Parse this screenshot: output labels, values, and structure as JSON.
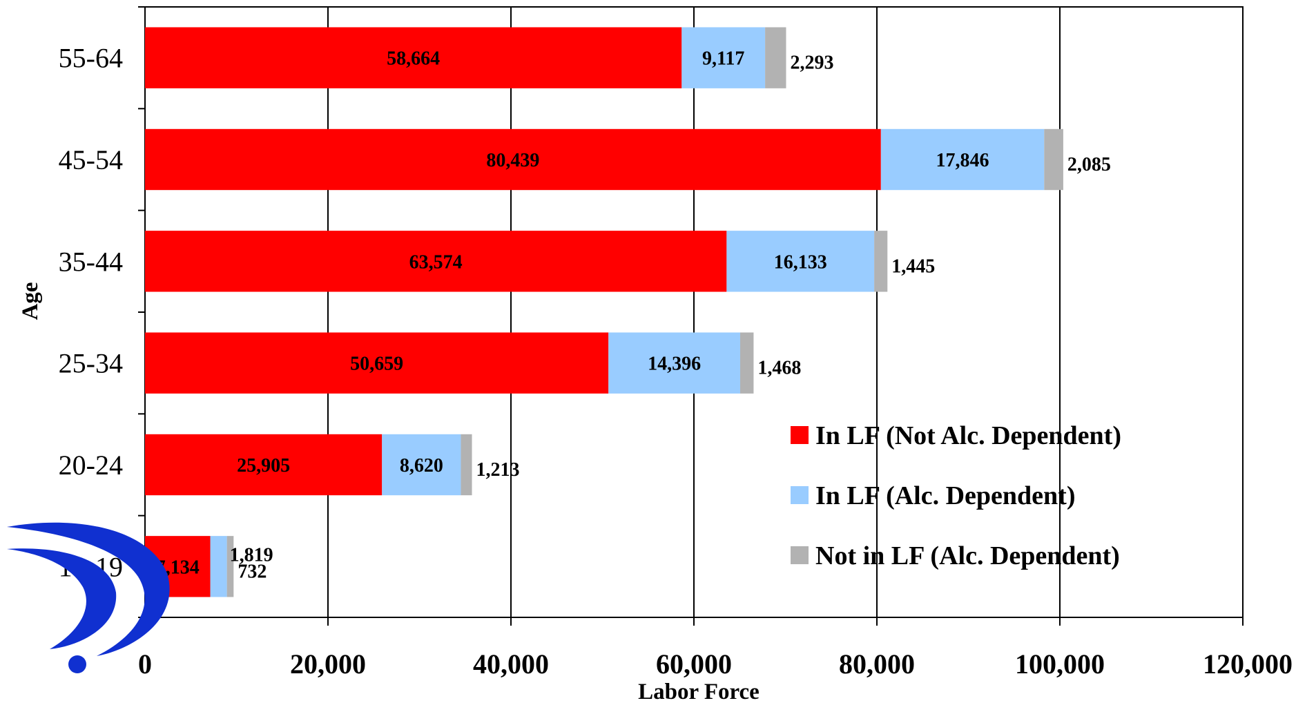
{
  "chart_data": {
    "type": "bar",
    "orientation": "horizontal",
    "stacked": true,
    "title": "",
    "xlabel": "Labor Force",
    "ylabel": "Age",
    "xlim": [
      0,
      120000
    ],
    "x_ticks": [
      0,
      20000,
      40000,
      60000,
      80000,
      100000,
      120000
    ],
    "x_tick_labels": [
      "0",
      "20,000",
      "40,000",
      "60,000",
      "80,000",
      "100,000",
      "120,000"
    ],
    "categories": [
      "55-64",
      "45-54",
      "35-44",
      "25-34",
      "20-24",
      "18-19"
    ],
    "series": [
      {
        "name": "In LF (Not Alc. Dependent)",
        "color": "#ff0000",
        "values": [
          58664,
          80439,
          63574,
          50659,
          25905,
          7134
        ],
        "labels": [
          "58,664",
          "80,439",
          "63,574",
          "50,659",
          "25,905",
          "7,134"
        ]
      },
      {
        "name": "In LF (Alc. Dependent)",
        "color": "#99ccff",
        "values": [
          9117,
          17846,
          16133,
          14396,
          8620,
          1819
        ],
        "labels": [
          "9,117",
          "17,846",
          "16,133",
          "14,396",
          "8,620",
          "1,819"
        ]
      },
      {
        "name": "Not in LF (Alc. Dependent)",
        "color": "#b2b2b2",
        "values": [
          2293,
          2085,
          1445,
          1468,
          1213,
          732
        ],
        "labels": [
          "2,293",
          "2,085",
          "1,445",
          "1,468",
          "1,213",
          "732"
        ]
      }
    ],
    "grid": true,
    "legend_position": "bottom-right"
  },
  "logo": {
    "name": "question-mark-logo",
    "color": "#1030d0"
  }
}
